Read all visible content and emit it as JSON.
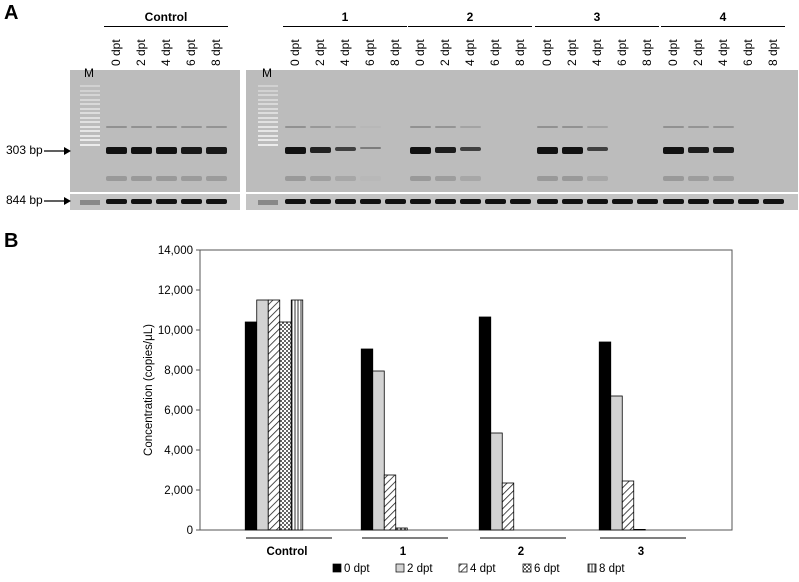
{
  "panel_a": {
    "letter": "A",
    "marker_label": "M",
    "groups": [
      {
        "name": "Control",
        "lanes": [
          "0 dpt",
          "2 dpt",
          "4 dpt",
          "6 dpt",
          "8 dpt"
        ],
        "intensity": [
          1,
          1,
          1,
          0.95,
          0.95
        ]
      },
      {
        "name": "1",
        "lanes": [
          "0 dpt",
          "2 dpt",
          "4 dpt",
          "6 dpt",
          "8 dpt"
        ],
        "intensity": [
          1,
          0.85,
          0.6,
          0.1,
          0
        ]
      },
      {
        "name": "2",
        "lanes": [
          "0 dpt",
          "2 dpt",
          "4 dpt",
          "6 dpt",
          "8 dpt"
        ],
        "intensity": [
          1,
          0.9,
          0.6,
          0,
          0
        ]
      },
      {
        "name": "3",
        "lanes": [
          "0 dpt",
          "2 dpt",
          "4 dpt",
          "6 dpt",
          "8 dpt"
        ],
        "intensity": [
          1,
          1,
          0.6,
          0,
          0
        ]
      },
      {
        "name": "4",
        "lanes": [
          "0 dpt",
          "2 dpt",
          "4 dpt",
          "6 dpt",
          "8 dpt"
        ],
        "intensity": [
          1,
          0.9,
          0.9,
          0,
          0
        ]
      }
    ],
    "band_labels": {
      "upper": "303 bp",
      "lower": "844 bp"
    }
  },
  "panel_b": {
    "letter": "B"
  },
  "colors": {
    "gel": "#bcbcbc",
    "band": "#111111",
    "bar_0dpt": "#000000",
    "bar_2dpt": "#d3d3d3"
  },
  "chart_data": {
    "type": "bar",
    "categories": [
      "Control",
      "1",
      "2",
      "3"
    ],
    "series": [
      {
        "name": "0 dpt",
        "values": [
          10400,
          9050,
          10650,
          9400
        ],
        "pattern": "solid-black"
      },
      {
        "name": "2 dpt",
        "values": [
          11500,
          7950,
          4850,
          6700
        ],
        "pattern": "light-gray"
      },
      {
        "name": "4 dpt",
        "values": [
          11500,
          2750,
          2350,
          2450
        ],
        "pattern": "diagonal-hatch"
      },
      {
        "name": "6 dpt",
        "values": [
          10400,
          100,
          0,
          30
        ],
        "pattern": "checker"
      },
      {
        "name": "8 dpt",
        "values": [
          11500,
          0,
          0,
          0
        ],
        "pattern": "vertical-lines"
      }
    ],
    "ylabel": "Concentration (copies/μL)",
    "ylim": [
      0,
      14000
    ],
    "yticks": [
      "0",
      "2,000",
      "4,000",
      "6,000",
      "8,000",
      "10,000",
      "12,000",
      "14,000"
    ],
    "grid": false,
    "legend_position": "bottom"
  }
}
